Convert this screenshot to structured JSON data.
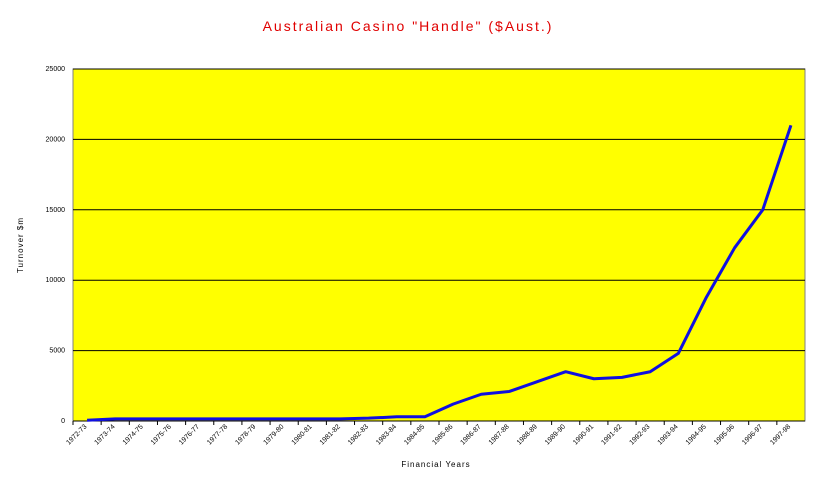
{
  "chart_data": {
    "type": "line",
    "title": "Australian Casino \"Handle\" ($Aust.)",
    "x_label": "Financial Years",
    "y_label": "Turnover $m",
    "categories": [
      "1972-73",
      "1973-74",
      "1974-75",
      "1975-76",
      "1976-77",
      "1977-78",
      "1978-79",
      "1979-80",
      "1980-81",
      "1981-82",
      "1982-83",
      "1983-84",
      "1984-85",
      "1985-86",
      "1986-87",
      "1987-88",
      "1988-89",
      "1989-90",
      "1990-91",
      "1991-92",
      "1992-93",
      "1993-94",
      "1994-95",
      "1995-96",
      "1996-97",
      "1997-98"
    ],
    "series": [
      {
        "name": "Turnover",
        "color": "#1010e0",
        "values": [
          50,
          150,
          150,
          150,
          150,
          150,
          150,
          150,
          150,
          150,
          200,
          300,
          300,
          1200,
          1900,
          2100,
          2800,
          3500,
          3000,
          3100,
          3500,
          4800,
          8800,
          12300,
          15000,
          21000
        ]
      }
    ],
    "ylim": [
      0,
      25000
    ],
    "yticks": [
      0,
      5000,
      10000,
      15000,
      20000,
      25000
    ],
    "grid": true,
    "plot_color": "#ffff00"
  }
}
